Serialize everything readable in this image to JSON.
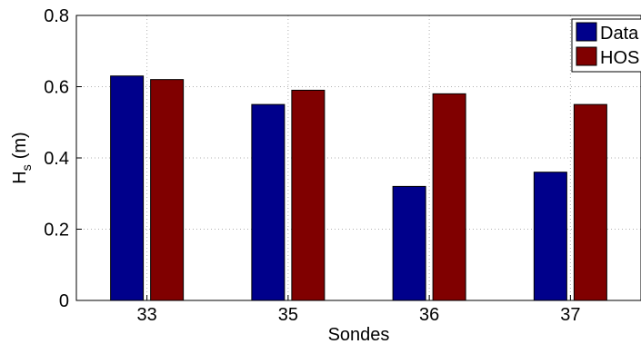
{
  "chart_data": {
    "type": "bar",
    "categories": [
      "33",
      "35",
      "36",
      "37"
    ],
    "series": [
      {
        "name": "Data",
        "values": [
          0.63,
          0.55,
          0.32,
          0.36
        ],
        "color": "#00008B"
      },
      {
        "name": "HOS",
        "values": [
          0.62,
          0.59,
          0.58,
          0.55
        ],
        "color": "#800000"
      }
    ],
    "xlabel": "Sondes",
    "ylabel": {
      "main": "H",
      "subscript": "s",
      "unit": "(m)"
    },
    "ylim": [
      0,
      0.8
    ],
    "yticks": [
      "0",
      "0.2",
      "0.4",
      "0.6",
      "0.8"
    ],
    "grid": true,
    "legend_position": "top-right"
  }
}
